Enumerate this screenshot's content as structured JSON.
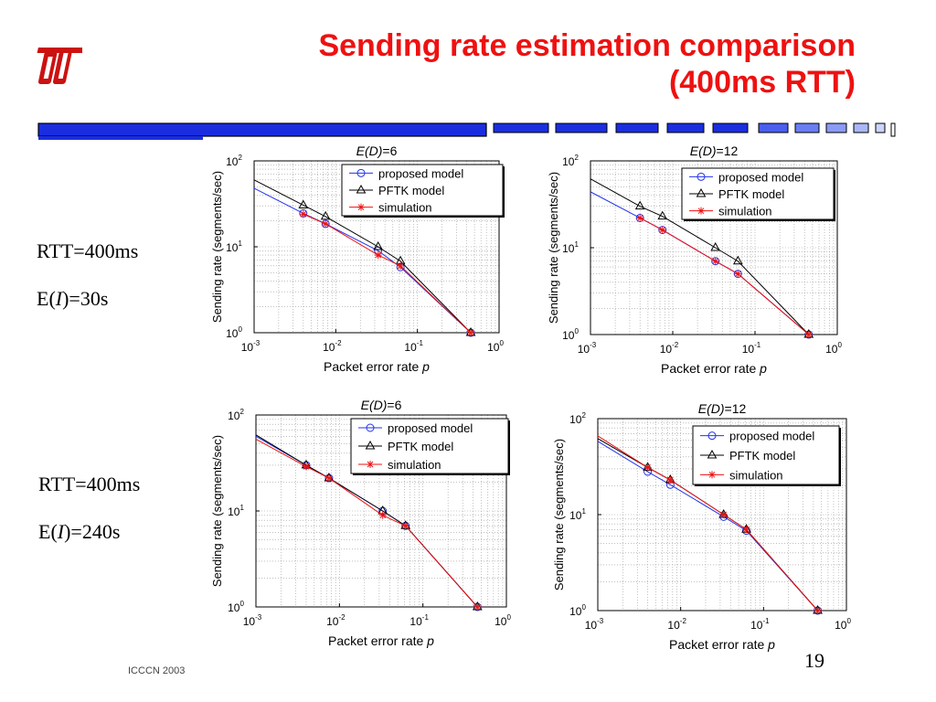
{
  "slide": {
    "title_line1": "Sending rate estimation comparison",
    "title_line2": "(400ms RTT)",
    "footer": "ICCCN 2003",
    "page_number": "19",
    "row_labels": [
      {
        "rtt": "RTT=400ms",
        "ei_prefix": "E(",
        "ei_var": "I",
        "ei_suffix": ")=30s"
      },
      {
        "rtt": "RTT=400ms",
        "ei_prefix": "E(",
        "ei_var": "I",
        "ei_suffix": ")=240s"
      }
    ],
    "colors": {
      "title": "#ee1111",
      "bar": "#1a2ee0",
      "logo": "#cc1111"
    }
  },
  "chart_data": [
    {
      "type": "line",
      "title": "E(D)=6",
      "title_var": "E(D)",
      "title_val": "=6",
      "xlabel": "Packet error rate",
      "xlabel_var": "p",
      "ylabel": "Sending rate (segments/sec)",
      "xscale": "log",
      "yscale": "log",
      "xlim": [
        0.001,
        1
      ],
      "ylim": [
        1,
        100
      ],
      "xticks": [
        0.001,
        0.01,
        0.1,
        1
      ],
      "xtick_labels": [
        [
          "10",
          "-3"
        ],
        [
          "10",
          "-2"
        ],
        [
          "10",
          "-1"
        ],
        [
          "10",
          "0"
        ]
      ],
      "yticks": [
        1,
        10,
        100
      ],
      "ytick_labels": [
        [
          "10",
          "0"
        ],
        [
          "10",
          "1"
        ],
        [
          "10",
          "2"
        ]
      ],
      "grid": true,
      "legend_position": "top-right",
      "x": [
        0.004,
        0.0075,
        0.033,
        0.062,
        0.45
      ],
      "series": [
        {
          "name": "proposed model",
          "color": "#2233ee",
          "marker": "circle",
          "values": [
            24.5,
            18.5,
            9.0,
            5.8,
            1.0
          ],
          "line_start": [
            0.001,
            48
          ]
        },
        {
          "name": "PFTK model",
          "color": "#000000",
          "marker": "triangle",
          "values": [
            30.5,
            22.5,
            10.0,
            6.8,
            1.0
          ],
          "line_start": [
            0.001,
            60
          ]
        },
        {
          "name": "simulation",
          "color": "#ee1111",
          "marker": "star",
          "values": [
            24.0,
            18.5,
            8.0,
            6.0,
            1.0
          ]
        }
      ]
    },
    {
      "type": "line",
      "title": "E(D)=12",
      "title_var": "E(D)",
      "title_val": "=12",
      "xlabel": "Packet error rate",
      "xlabel_var": "p",
      "ylabel": "Sending rate (segments/sec)",
      "xscale": "log",
      "yscale": "log",
      "xlim": [
        0.001,
        1
      ],
      "ylim": [
        1,
        100
      ],
      "xticks": [
        0.001,
        0.01,
        0.1,
        1
      ],
      "xtick_labels": [
        [
          "10",
          "-3"
        ],
        [
          "10",
          "-2"
        ],
        [
          "10",
          "-1"
        ],
        [
          "10",
          "0"
        ]
      ],
      "yticks": [
        1,
        10,
        100
      ],
      "ytick_labels": [
        [
          "10",
          "0"
        ],
        [
          "10",
          "1"
        ],
        [
          "10",
          "2"
        ]
      ],
      "grid": true,
      "legend_position": "top-right",
      "x": [
        0.004,
        0.0075,
        0.033,
        0.062,
        0.45
      ],
      "series": [
        {
          "name": "proposed model",
          "color": "#2233ee",
          "marker": "circle",
          "values": [
            22.0,
            16.0,
            7.0,
            5.0,
            1.0
          ],
          "line_start": [
            0.001,
            44
          ]
        },
        {
          "name": "PFTK model",
          "color": "#000000",
          "marker": "triangle",
          "values": [
            30.0,
            23.0,
            10.0,
            7.0,
            1.0
          ],
          "line_start": [
            0.001,
            62
          ]
        },
        {
          "name": "simulation",
          "color": "#ee1111",
          "marker": "star",
          "values": [
            22.0,
            16.0,
            7.0,
            5.0,
            1.0
          ]
        }
      ]
    },
    {
      "type": "line",
      "title": "E(D)=6",
      "title_var": "E(D)",
      "title_val": "=6",
      "xlabel": "Packet error rate",
      "xlabel_var": "p",
      "ylabel": "Sending rate (segments/sec)",
      "xscale": "log",
      "yscale": "log",
      "xlim": [
        0.001,
        1
      ],
      "ylim": [
        1,
        100
      ],
      "xticks": [
        0.001,
        0.01,
        0.1,
        1
      ],
      "xtick_labels": [
        [
          "10",
          "-3"
        ],
        [
          "10",
          "-2"
        ],
        [
          "10",
          "-1"
        ],
        [
          "10",
          "0"
        ]
      ],
      "yticks": [
        1,
        10,
        100
      ],
      "ytick_labels": [
        [
          "10",
          "0"
        ],
        [
          "10",
          "1"
        ],
        [
          "10",
          "2"
        ]
      ],
      "grid": true,
      "legend_position": "top-right",
      "x": [
        0.004,
        0.0075,
        0.033,
        0.062,
        0.45
      ],
      "series": [
        {
          "name": "proposed model",
          "color": "#2233ee",
          "marker": "circle",
          "values": [
            30.0,
            22.0,
            10.0,
            7.0,
            1.0
          ],
          "line_start": [
            0.001,
            60
          ]
        },
        {
          "name": "PFTK model",
          "color": "#000000",
          "marker": "triangle",
          "values": [
            30.0,
            22.0,
            10.0,
            7.0,
            1.0
          ],
          "line_start": [
            0.001,
            62
          ]
        },
        {
          "name": "simulation",
          "color": "#ee1111",
          "marker": "star",
          "values": [
            29.0,
            22.0,
            9.0,
            7.0,
            1.0
          ],
          "line_start": [
            0.001,
            56
          ]
        }
      ]
    },
    {
      "type": "line",
      "title": "E(D)=12",
      "title_var": "E(D)",
      "title_val": "=12",
      "xlabel": "Packet error rate",
      "xlabel_var": "p",
      "ylabel": "Sending rate (segments/sec)",
      "xscale": "log",
      "yscale": "log",
      "xlim": [
        0.001,
        1
      ],
      "ylim": [
        1,
        100
      ],
      "xticks": [
        0.001,
        0.01,
        0.1,
        1
      ],
      "xtick_labels": [
        [
          "10",
          "-3"
        ],
        [
          "10",
          "-2"
        ],
        [
          "10",
          "-1"
        ],
        [
          "10",
          "0"
        ]
      ],
      "yticks": [
        1,
        10,
        100
      ],
      "ytick_labels": [
        [
          "10",
          "0"
        ],
        [
          "10",
          "1"
        ],
        [
          "10",
          "2"
        ]
      ],
      "grid": true,
      "legend_position": "top-right",
      "x": [
        0.004,
        0.0075,
        0.033,
        0.062,
        0.45
      ],
      "series": [
        {
          "name": "proposed model",
          "color": "#2233ee",
          "marker": "circle",
          "values": [
            28.0,
            20.5,
            9.5,
            6.8,
            1.0
          ],
          "line_start": [
            0.001,
            58
          ]
        },
        {
          "name": "PFTK model",
          "color": "#000000",
          "marker": "triangle",
          "values": [
            31.0,
            23.0,
            10.0,
            7.0,
            1.0
          ],
          "line_start": [
            0.001,
            62
          ]
        },
        {
          "name": "simulation",
          "color": "#ee1111",
          "marker": "star",
          "values": [
            31.0,
            23.0,
            10.0,
            7.0,
            1.0
          ],
          "line_start": [
            0.001,
            66
          ]
        }
      ]
    }
  ]
}
